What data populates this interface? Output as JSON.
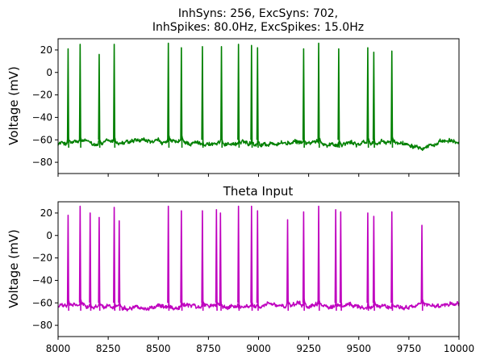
{
  "chart_data": [
    {
      "type": "line",
      "title_line1": "InhSyns: 256, ExcSyns: 702,",
      "title_line2": "InhSpikes: 80.0Hz, ExcSpikes: 15.0Hz",
      "xlabel": "",
      "ylabel": "Voltage (mV)",
      "xlim": [
        8000,
        10000
      ],
      "ylim": [
        -90,
        30
      ],
      "yticks": [
        20,
        0,
        -20,
        -40,
        -60,
        -80
      ],
      "ytick_labels": [
        "20",
        "0",
        "−20",
        "−40",
        "−60",
        "−80"
      ],
      "xtick_labels_visible": false,
      "color": "#008000",
      "baseline_mv": -63,
      "spikes": [
        {
          "t": 8050,
          "peak": 21
        },
        {
          "t": 8110,
          "peak": 25
        },
        {
          "t": 8205,
          "peak": 16
        },
        {
          "t": 8280,
          "peak": 25
        },
        {
          "t": 8550,
          "peak": 26
        },
        {
          "t": 8615,
          "peak": 22
        },
        {
          "t": 8720,
          "peak": 23
        },
        {
          "t": 8815,
          "peak": 23
        },
        {
          "t": 8900,
          "peak": 25
        },
        {
          "t": 8965,
          "peak": 24
        },
        {
          "t": 8995,
          "peak": 22
        },
        {
          "t": 9225,
          "peak": 21
        },
        {
          "t": 9300,
          "peak": 26
        },
        {
          "t": 9400,
          "peak": 21
        },
        {
          "t": 9545,
          "peak": 22
        },
        {
          "t": 9575,
          "peak": 18
        },
        {
          "t": 9665,
          "peak": 19
        }
      ]
    },
    {
      "type": "line",
      "title": "Theta Input",
      "xlabel": "",
      "ylabel": "Voltage (mV)",
      "xlim": [
        8000,
        10000
      ],
      "ylim": [
        -90,
        30
      ],
      "yticks": [
        20,
        0,
        -20,
        -40,
        -60,
        -80
      ],
      "ytick_labels": [
        "20",
        "0",
        "−20",
        "−40",
        "−60",
        "−80"
      ],
      "xticks": [
        8000,
        8250,
        8500,
        8750,
        9000,
        9250,
        9500,
        9750,
        10000
      ],
      "xtick_labels": [
        "8000",
        "8250",
        "8500",
        "8750",
        "9000",
        "9250",
        "9500",
        "9750",
        "10000"
      ],
      "color": "#bf00bf",
      "baseline_mv": -63,
      "spikes": [
        {
          "t": 8050,
          "peak": 18
        },
        {
          "t": 8110,
          "peak": 26
        },
        {
          "t": 8160,
          "peak": 20
        },
        {
          "t": 8205,
          "peak": 16
        },
        {
          "t": 8280,
          "peak": 25
        },
        {
          "t": 8305,
          "peak": 13
        },
        {
          "t": 8550,
          "peak": 26
        },
        {
          "t": 8615,
          "peak": 22
        },
        {
          "t": 8720,
          "peak": 22
        },
        {
          "t": 8790,
          "peak": 23
        },
        {
          "t": 8810,
          "peak": 20
        },
        {
          "t": 8900,
          "peak": 26
        },
        {
          "t": 8965,
          "peak": 26
        },
        {
          "t": 8995,
          "peak": 22
        },
        {
          "t": 9145,
          "peak": 14
        },
        {
          "t": 9225,
          "peak": 21
        },
        {
          "t": 9300,
          "peak": 26
        },
        {
          "t": 9385,
          "peak": 23
        },
        {
          "t": 9410,
          "peak": 21
        },
        {
          "t": 9545,
          "peak": 20
        },
        {
          "t": 9575,
          "peak": 17
        },
        {
          "t": 9665,
          "peak": 21
        },
        {
          "t": 9815,
          "peak": 9
        }
      ]
    }
  ]
}
